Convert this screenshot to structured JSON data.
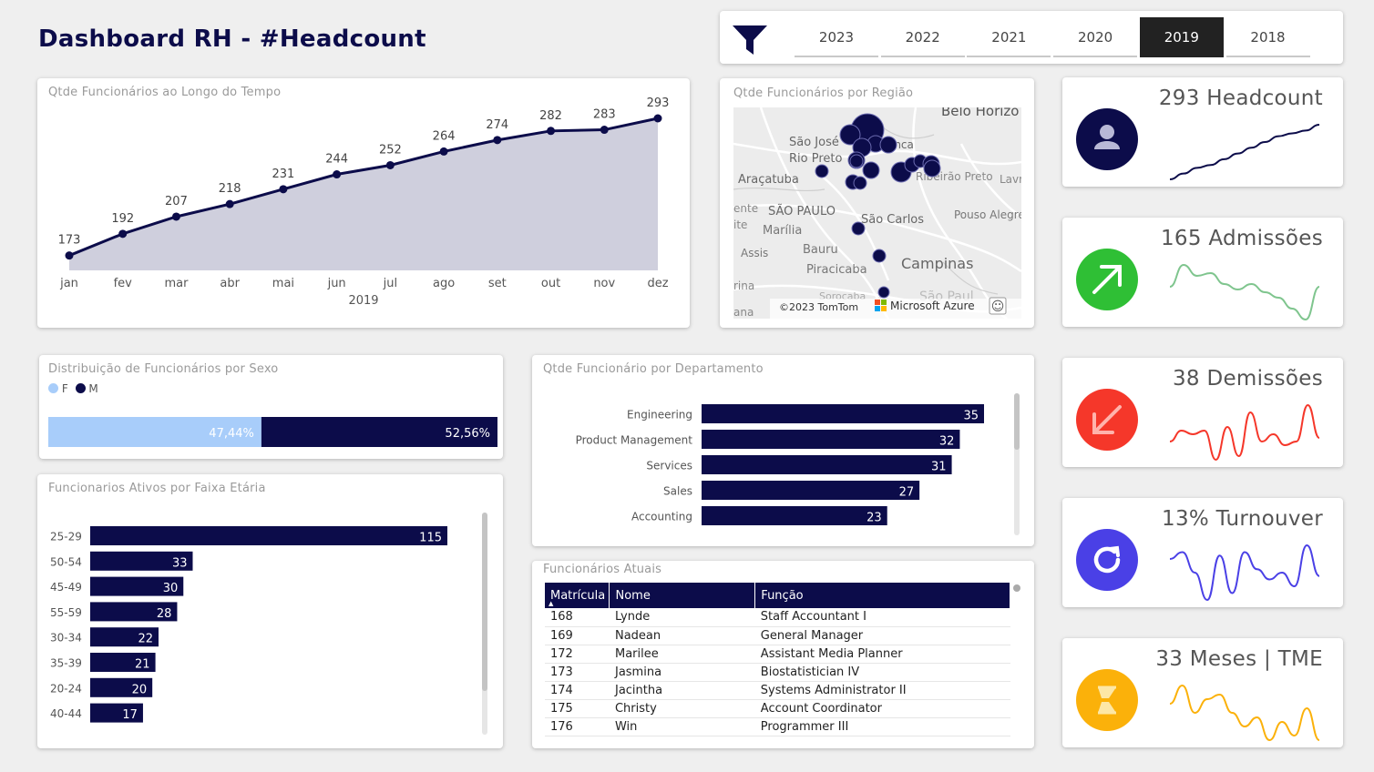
{
  "title": "Dashboard RH - #Headcount",
  "slicer": {
    "years": [
      "2023",
      "2022",
      "2021",
      "2020",
      "2019",
      "2018"
    ],
    "selected": "2019"
  },
  "colors": {
    "navy": "#0c0c4a",
    "fem": "#a8cdfa",
    "area": "#cfcfdd",
    "green": "#2fbf35",
    "red": "#f5372a",
    "purple": "#4a40e6",
    "orange": "#fbb10a"
  },
  "headcount_chart": {
    "title": "Qtde Funcionários ao Longo do Tempo",
    "xlabel": "2019"
  },
  "map": {
    "title": "Qtde Funcionários por Região",
    "places": [
      "Belo Horizo",
      "São José",
      "Rio Preto",
      "Franca",
      "Araçatuba",
      "São Carlos",
      "SÃO PAULO",
      "Marília",
      "Pouso Alegre",
      "Bauru",
      "Assis",
      "Piracicaba",
      "Campinas",
      "Ribeirão Preto",
      "Lavr",
      "ente",
      "ite",
      "rina",
      "ana",
      "São Paul",
      "Sorocaba"
    ],
    "copyright": "©2023 TomTom",
    "brand": "Microsoft Azure",
    "smiley": "☺"
  },
  "kpis": [
    {
      "label": "293 Headcount",
      "icon": "person-icon",
      "color": "#0c0c4a",
      "line": "#0c0c4a"
    },
    {
      "label": "165 Admissões",
      "icon": "arrow-up-right-icon",
      "color": "#2fbf35",
      "line": "#7fc58e"
    },
    {
      "label": "38 Demissões",
      "icon": "arrow-down-left-icon",
      "color": "#f5372a",
      "line": "#f5372a"
    },
    {
      "label": "13% Turnouver",
      "icon": "refresh-icon",
      "color": "#4a40e6",
      "line": "#4a40e6"
    },
    {
      "label": "33 Meses | TME",
      "icon": "hourglass-icon",
      "color": "#fbb10a",
      "line": "#fbb10a"
    }
  ],
  "sex_dist": {
    "title": "Distribuição de Funcionários por Sexo",
    "legend": [
      "F",
      "M"
    ]
  },
  "age_chart": {
    "title": "Funcionarios Ativos por Faixa Etária"
  },
  "dept_chart": {
    "title": "Qtde Funcionário por Departamento"
  },
  "employees": {
    "title": "Funcionários Atuais",
    "columns": [
      "Matrícula",
      "Nome",
      "Função"
    ],
    "rows": [
      [
        "168",
        "Lynde",
        "Staff Accountant I"
      ],
      [
        "169",
        "Nadean",
        "General Manager"
      ],
      [
        "172",
        "Marilee",
        "Assistant Media Planner"
      ],
      [
        "173",
        "Jasmina",
        "Biostatistician IV"
      ],
      [
        "174",
        "Jacintha",
        "Systems Administrator II"
      ],
      [
        "175",
        "Christy",
        "Account Coordinator"
      ],
      [
        "176",
        "Win",
        "Programmer III"
      ]
    ]
  },
  "chart_data": [
    {
      "type": "area",
      "title": "Qtde Funcionários ao Longo do Tempo",
      "xlabel": "2019",
      "categories": [
        "jan",
        "fev",
        "mar",
        "abr",
        "mai",
        "jun",
        "jul",
        "ago",
        "set",
        "out",
        "nov",
        "dez"
      ],
      "values": [
        173,
        192,
        207,
        218,
        231,
        244,
        252,
        264,
        274,
        282,
        283,
        293
      ]
    },
    {
      "type": "bar",
      "orientation": "horizontal-stacked-100",
      "title": "Distribuição de Funcionários por Sexo",
      "series": [
        {
          "name": "F",
          "values": [
            47.44
          ],
          "label": "47,44%"
        },
        {
          "name": "M",
          "values": [
            52.56
          ],
          "label": "52,56%"
        }
      ]
    },
    {
      "type": "bar",
      "orientation": "horizontal",
      "title": "Funcionarios Ativos por Faixa Etária",
      "categories": [
        "25-29",
        "50-54",
        "45-49",
        "55-59",
        "30-34",
        "35-39",
        "20-24",
        "40-44"
      ],
      "values": [
        115,
        33,
        30,
        28,
        22,
        21,
        20,
        17
      ]
    },
    {
      "type": "bar",
      "orientation": "horizontal",
      "title": "Qtde Funcionário por Departamento",
      "categories": [
        "Engineering",
        "Product Management",
        "Services",
        "Sales",
        "Accounting"
      ],
      "values": [
        35,
        32,
        31,
        27,
        23
      ]
    },
    {
      "type": "scatter",
      "title": "Qtde Funcionários por Região"
    },
    {
      "type": "line",
      "title": "293 Headcount",
      "values": [
        1,
        3,
        5,
        6,
        8,
        10,
        12,
        14,
        16,
        17,
        18,
        20
      ]
    },
    {
      "type": "line",
      "title": "165 Admissões",
      "values": [
        14,
        22,
        18,
        19,
        15,
        13,
        15,
        12,
        10,
        6,
        2,
        14
      ]
    },
    {
      "type": "line",
      "title": "38 Demissões",
      "values": [
        5,
        8,
        7,
        8,
        0,
        9,
        1,
        13,
        5,
        7,
        4,
        5,
        15,
        6
      ]
    },
    {
      "type": "line",
      "title": "13% Turnouver",
      "values": [
        12,
        14,
        8,
        0,
        13,
        2,
        14,
        9,
        6,
        8,
        4,
        16,
        7
      ]
    },
    {
      "type": "line",
      "title": "33 Meses | TME",
      "values": [
        8,
        12,
        6,
        9,
        10,
        6,
        3,
        5,
        0,
        4,
        1,
        7,
        0
      ]
    }
  ]
}
